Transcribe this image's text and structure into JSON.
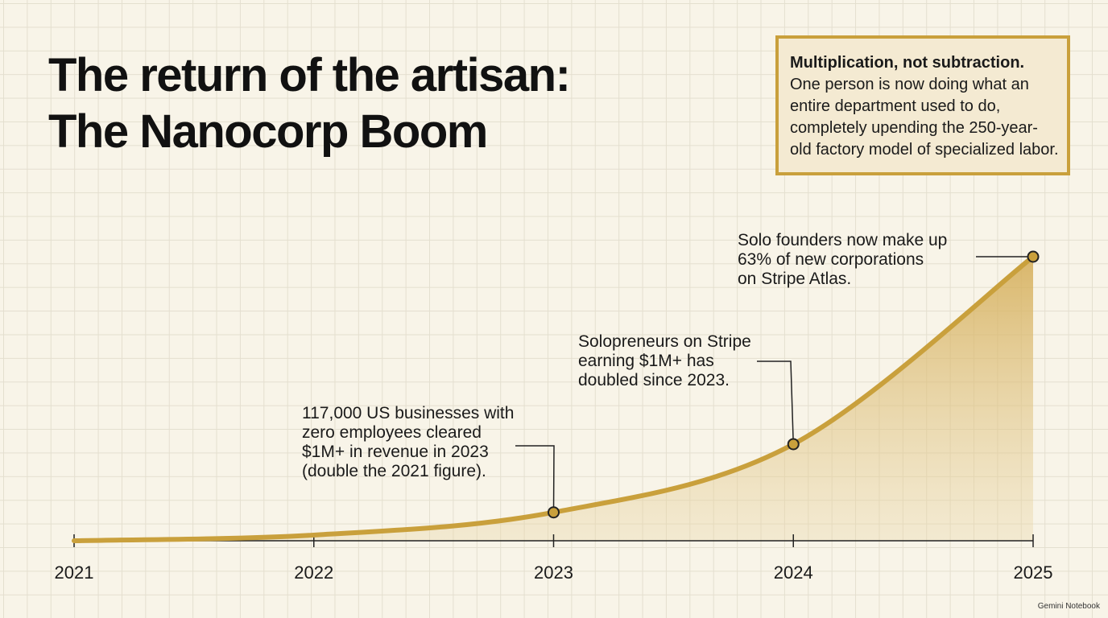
{
  "chart_data": {
    "type": "area",
    "title_lines": [
      "The return of the artisan:",
      "The Nanocorp Boom"
    ],
    "categories": [
      "2021",
      "2022",
      "2023",
      "2024",
      "2025"
    ],
    "values": [
      0,
      2,
      10,
      34,
      100
    ],
    "ylim": [
      0,
      100
    ],
    "color": "#c9a03c",
    "annotations": [
      {
        "at": "2023",
        "lines": [
          "117,000 US businesses with",
          "zero employees cleared",
          "$1M+ in revenue in 2023",
          "(double the 2021 figure)."
        ]
      },
      {
        "at": "2024",
        "lines": [
          "Solopreneurs on Stripe",
          "earning $1M+ has",
          "doubled since 2023."
        ]
      },
      {
        "at": "2025",
        "lines": [
          "Solo founders now make up",
          "63% of new corporations",
          "on Stripe Atlas."
        ]
      }
    ],
    "callout": {
      "heading": "Multiplication, not subtraction.",
      "lines": [
        "One person is now doing what an",
        "entire department used to do,",
        "completely upending the 250-year-",
        "old factory model of specialized labor."
      ]
    },
    "footer": "Gemini Notebook"
  }
}
